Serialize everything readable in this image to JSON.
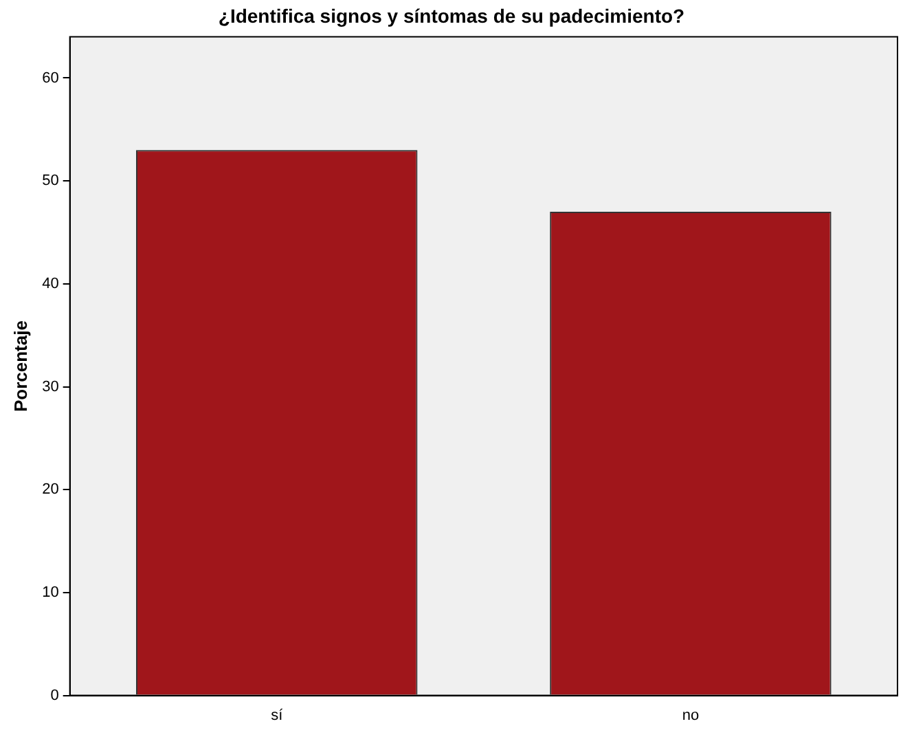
{
  "chart_data": {
    "type": "bar",
    "title": "¿Identifica signos y síntomas de su padecimiento?",
    "ylabel": "Porcentaje",
    "categories": [
      "sí",
      "no"
    ],
    "values": [
      53,
      47
    ],
    "color": "#a0161b",
    "ylim": [
      0,
      64
    ],
    "yticks": [
      0,
      10,
      20,
      30,
      40,
      50,
      60
    ],
    "grid": false,
    "legend": false
  }
}
